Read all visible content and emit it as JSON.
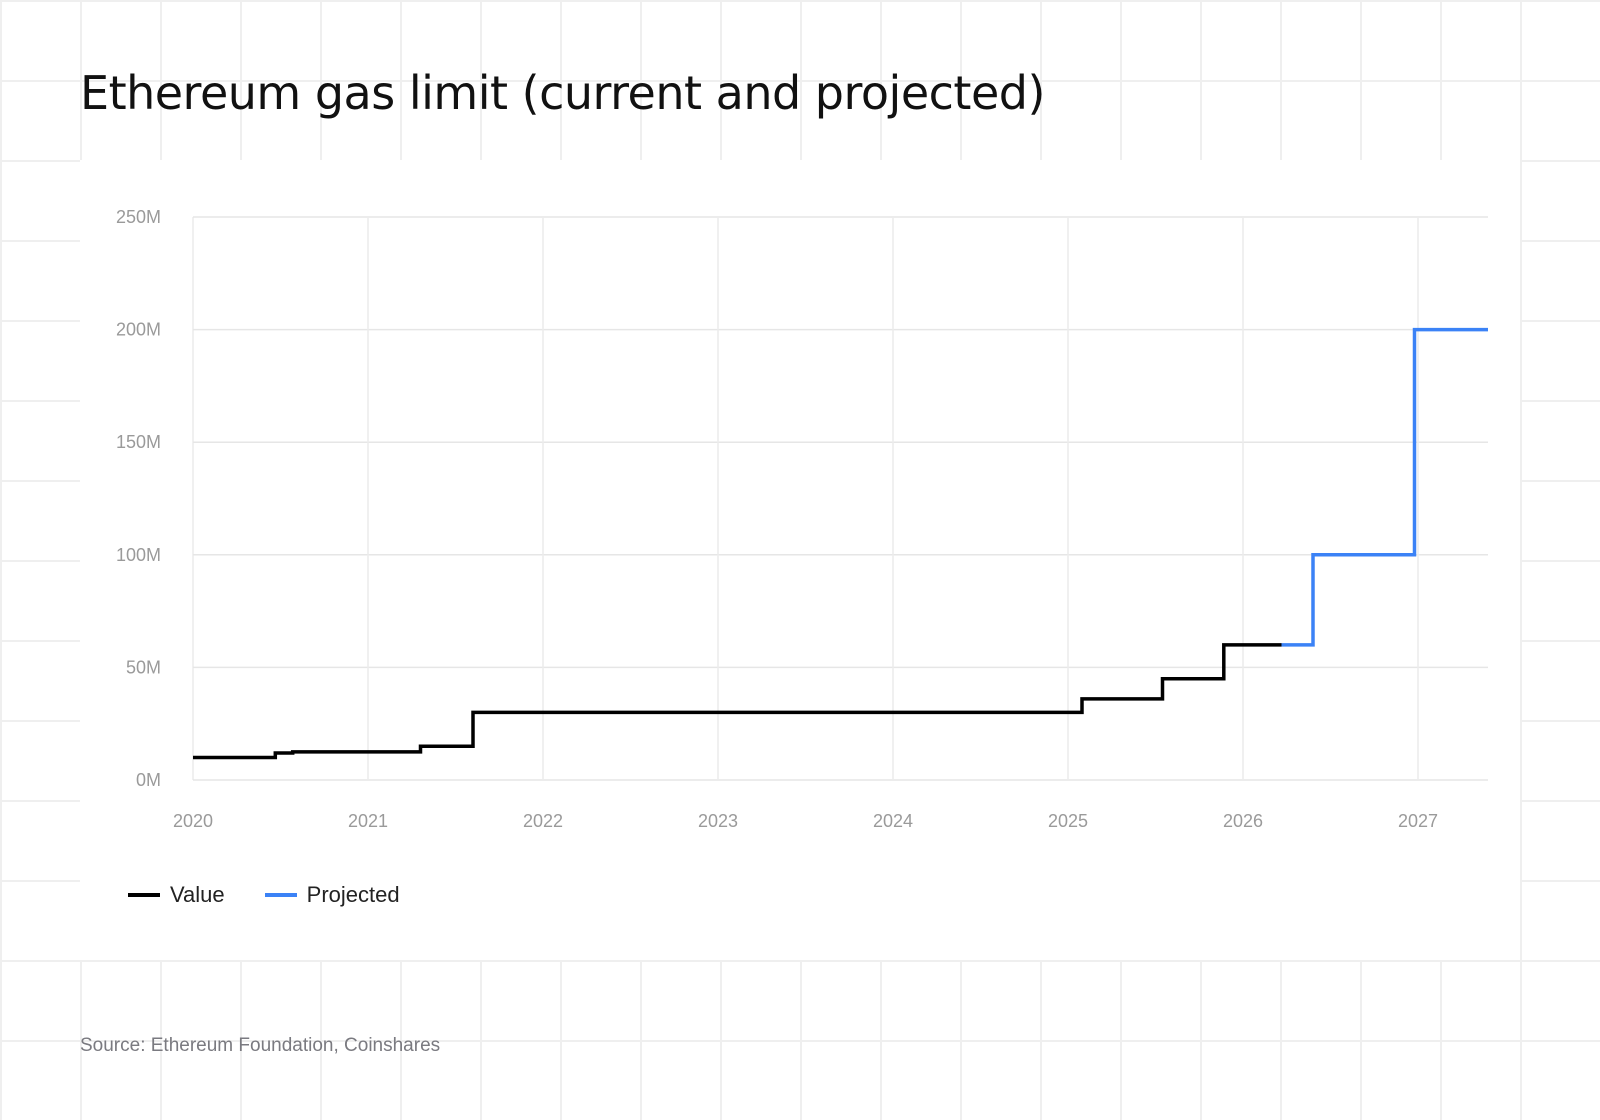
{
  "title": "Ethereum gas limit (current and projected)",
  "source": "Source: Ethereum Foundation, Coinshares",
  "chart_data": {
    "type": "line",
    "title": "Ethereum gas limit (current and projected)",
    "xlabel": "",
    "ylabel": "",
    "xlim": [
      2020.0,
      2027.4
    ],
    "ylim": [
      0,
      250
    ],
    "x_ticks": [
      {
        "value": 2020,
        "label": "2020"
      },
      {
        "value": 2021,
        "label": "2021"
      },
      {
        "value": 2022,
        "label": "2022"
      },
      {
        "value": 2023,
        "label": "2023"
      },
      {
        "value": 2024,
        "label": "2024"
      },
      {
        "value": 2025,
        "label": "2025"
      },
      {
        "value": 2026,
        "label": "2026"
      },
      {
        "value": 2027,
        "label": "2027"
      }
    ],
    "y_ticks": [
      {
        "value": 0,
        "label": "0M"
      },
      {
        "value": 50,
        "label": "50M"
      },
      {
        "value": 100,
        "label": "100M"
      },
      {
        "value": 150,
        "label": "150M"
      },
      {
        "value": 200,
        "label": "200M"
      },
      {
        "value": 250,
        "label": "250M"
      }
    ],
    "grid": true,
    "legend_position": "bottom-left",
    "series": [
      {
        "name": "Value",
        "color": "#000000",
        "step": true,
        "points": [
          {
            "x": 2020.0,
            "y": 10
          },
          {
            "x": 2020.47,
            "y": 12
          },
          {
            "x": 2020.57,
            "y": 12.5
          },
          {
            "x": 2021.3,
            "y": 15
          },
          {
            "x": 2021.6,
            "y": 30
          },
          {
            "x": 2025.08,
            "y": 36
          },
          {
            "x": 2025.54,
            "y": 45
          },
          {
            "x": 2025.89,
            "y": 60
          },
          {
            "x": 2026.22,
            "y": 60
          }
        ]
      },
      {
        "name": "Projected",
        "color": "#3b82f6",
        "step": true,
        "points": [
          {
            "x": 2026.22,
            "y": 60
          },
          {
            "x": 2026.4,
            "y": 100
          },
          {
            "x": 2026.98,
            "y": 200
          },
          {
            "x": 2027.4,
            "y": 200
          }
        ]
      }
    ]
  }
}
